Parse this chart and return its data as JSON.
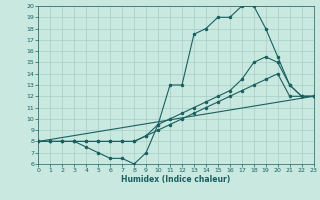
{
  "xlabel": "Humidex (Indice chaleur)",
  "xlim": [
    0,
    23
  ],
  "ylim": [
    6,
    20
  ],
  "xticks": [
    0,
    1,
    2,
    3,
    4,
    5,
    6,
    7,
    8,
    9,
    10,
    11,
    12,
    13,
    14,
    15,
    16,
    17,
    18,
    19,
    20,
    21,
    22,
    23
  ],
  "yticks": [
    6,
    7,
    8,
    9,
    10,
    11,
    12,
    13,
    14,
    15,
    16,
    17,
    18,
    19,
    20
  ],
  "bg_color": "#c8e8e0",
  "grid_color": "#a0c8c0",
  "line_color": "#1a6060",
  "curves": [
    {
      "x": [
        0,
        1,
        2,
        3,
        4,
        5,
        6,
        7,
        8,
        9,
        10,
        11,
        12,
        13,
        14,
        15,
        16,
        17,
        18,
        19,
        20,
        21,
        22,
        23
      ],
      "y": [
        8,
        8,
        8,
        8,
        7.5,
        7,
        6.5,
        6.5,
        6,
        7,
        9.5,
        13,
        13,
        17.5,
        18,
        19,
        19,
        20,
        20,
        18,
        15.5,
        13,
        12,
        12
      ]
    },
    {
      "x": [
        0,
        23
      ],
      "y": [
        8,
        12
      ]
    },
    {
      "x": [
        0,
        1,
        2,
        3,
        4,
        5,
        6,
        7,
        8,
        9,
        10,
        11,
        12,
        13,
        14,
        15,
        16,
        17,
        18,
        19,
        20,
        21,
        22,
        23
      ],
      "y": [
        8,
        8,
        8,
        8,
        8,
        8,
        8,
        8,
        8,
        8.5,
        9.5,
        10,
        10.5,
        11,
        11.5,
        12,
        12.5,
        13.5,
        15,
        15.5,
        15,
        13,
        12,
        12
      ]
    },
    {
      "x": [
        0,
        1,
        2,
        3,
        4,
        5,
        6,
        7,
        8,
        9,
        10,
        11,
        12,
        13,
        14,
        15,
        16,
        17,
        18,
        19,
        20,
        21,
        22,
        23
      ],
      "y": [
        8,
        8,
        8,
        8,
        8,
        8,
        8,
        8,
        8,
        8.5,
        9,
        9.5,
        10,
        10.5,
        11,
        11.5,
        12,
        12.5,
        13,
        13.5,
        14,
        12,
        12,
        12
      ]
    }
  ]
}
